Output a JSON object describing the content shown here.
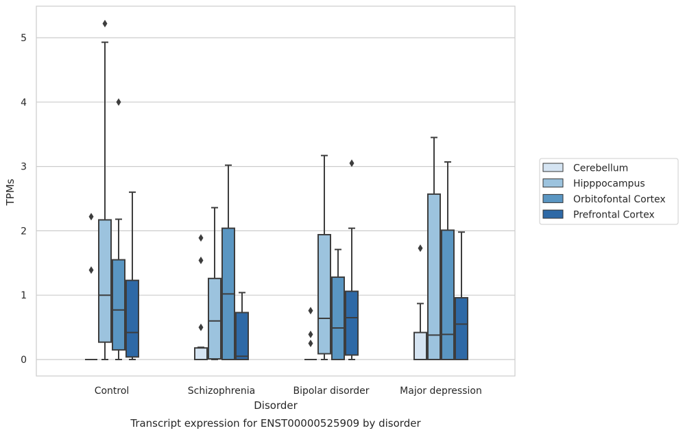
{
  "chart_data": {
    "type": "boxplot",
    "title": "",
    "caption": "Transcript expression for ENST00000525909 by disorder",
    "xlabel": "Disorder",
    "ylabel": "TPMs",
    "ylim": [
      -0.26,
      5.5
    ],
    "yticks": [
      0,
      1,
      2,
      3,
      4,
      5
    ],
    "grid": "y",
    "legend_position": "right",
    "categories": [
      "Control",
      "Schizophrenia",
      "Bipolar disorder",
      "Major depression"
    ],
    "series": [
      {
        "name": "Cerebellum",
        "color": "#d5e4f2",
        "boxes": [
          {
            "whislo": 0,
            "q1": 0,
            "med": 0,
            "q3": 0,
            "whishi": 0,
            "fliers": [
              1.39,
              2.22
            ]
          },
          {
            "whislo": 0,
            "q1": 0,
            "med": 0,
            "q3": 0.18,
            "whishi": 0.19,
            "fliers": [
              0.5,
              1.54,
              1.89
            ]
          },
          {
            "whislo": 0,
            "q1": 0,
            "med": 0,
            "q3": 0,
            "whishi": 0,
            "fliers": [
              0.25,
              0.39,
              0.76
            ]
          },
          {
            "whislo": 0,
            "q1": 0,
            "med": 0,
            "q3": 0.42,
            "whishi": 0.87,
            "fliers": [
              1.73
            ]
          }
        ]
      },
      {
        "name": "Hipppocampus",
        "color": "#9cc3de",
        "boxes": [
          {
            "whislo": 0,
            "q1": 0.27,
            "med": 1.0,
            "q3": 2.17,
            "whishi": 4.93,
            "fliers": [
              5.22
            ]
          },
          {
            "whislo": 0,
            "q1": 0.01,
            "med": 0.6,
            "q3": 1.26,
            "whishi": 2.36,
            "fliers": []
          },
          {
            "whislo": 0,
            "q1": 0.09,
            "med": 0.64,
            "q3": 1.94,
            "whishi": 3.17,
            "fliers": []
          },
          {
            "whislo": 0,
            "q1": 0,
            "med": 0.38,
            "q3": 2.57,
            "whishi": 3.45,
            "fliers": []
          }
        ]
      },
      {
        "name": "Orbitofontal Cortex",
        "color": "#5a96c2",
        "boxes": [
          {
            "whislo": 0,
            "q1": 0.15,
            "med": 0.77,
            "q3": 1.55,
            "whishi": 2.18,
            "fliers": [
              4.0
            ]
          },
          {
            "whislo": 0,
            "q1": 0,
            "med": 1.02,
            "q3": 2.04,
            "whishi": 3.02,
            "fliers": []
          },
          {
            "whislo": 0,
            "q1": 0,
            "med": 0.49,
            "q3": 1.28,
            "whishi": 1.71,
            "fliers": []
          },
          {
            "whislo": 0,
            "q1": 0,
            "med": 0.39,
            "q3": 2.01,
            "whishi": 3.07,
            "fliers": []
          }
        ]
      },
      {
        "name": "Prefrontal Cortex",
        "color": "#2e69a6",
        "boxes": [
          {
            "whislo": 0,
            "q1": 0.04,
            "med": 0.42,
            "q3": 1.23,
            "whishi": 2.6,
            "fliers": []
          },
          {
            "whislo": 0,
            "q1": 0,
            "med": 0.05,
            "q3": 0.73,
            "whishi": 1.04,
            "fliers": []
          },
          {
            "whislo": 0,
            "q1": 0.07,
            "med": 0.65,
            "q3": 1.06,
            "whishi": 2.04,
            "fliers": [
              3.05
            ]
          },
          {
            "whislo": 0,
            "q1": 0,
            "med": 0.55,
            "q3": 0.96,
            "whishi": 1.98,
            "fliers": []
          }
        ]
      }
    ]
  }
}
